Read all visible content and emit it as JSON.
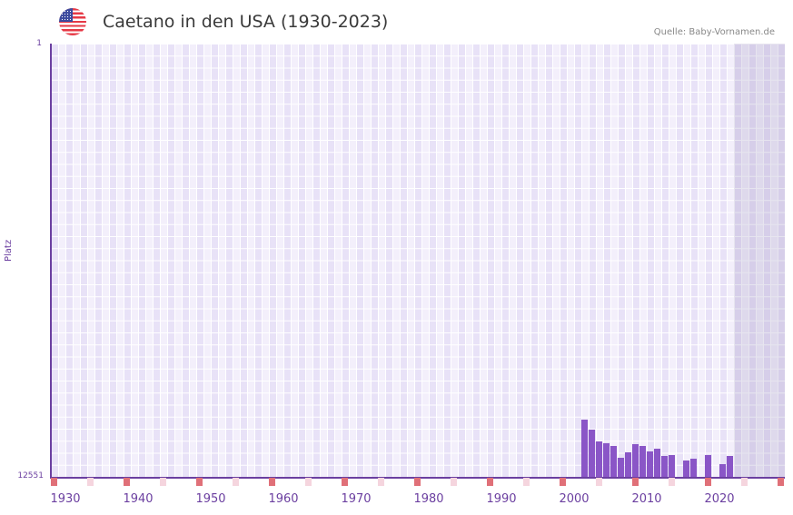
{
  "header": {
    "title": "Caetano in den USA (1930-2023)",
    "source": "Quelle: Baby-Vornamen.de",
    "flag_icon": "us-flag-icon"
  },
  "colors": {
    "bar": "#8a56c7",
    "axis": "#6b3fa0",
    "decade_marker": "#e07078",
    "half_decade_marker": "#f5d5de",
    "plot_bg": "#f3effb"
  },
  "chart_data": {
    "type": "bar",
    "title": "Caetano in den USA (1930-2023)",
    "xlabel": "",
    "ylabel": "Platz",
    "ylim": [
      12551,
      1
    ],
    "y_inverted": true,
    "yticks": [
      "1",
      "12551"
    ],
    "xticks": [
      "1930",
      "1940",
      "1950",
      "1960",
      "1970",
      "1980",
      "1990",
      "2000",
      "2010",
      "2020"
    ],
    "x_range": [
      1928,
      2028
    ],
    "future_shaded_from": 2022,
    "grid": true,
    "categories": [
      2001,
      2002,
      2003,
      2004,
      2005,
      2006,
      2007,
      2008,
      2009,
      2010,
      2011,
      2012,
      2013,
      2015,
      2016,
      2018,
      2020,
      2021
    ],
    "values": [
      10894,
      11183,
      11525,
      11578,
      11657,
      11999,
      11841,
      11604,
      11657,
      11815,
      11736,
      11947,
      11920,
      12078,
      12026,
      11920,
      12183,
      11947
    ]
  }
}
